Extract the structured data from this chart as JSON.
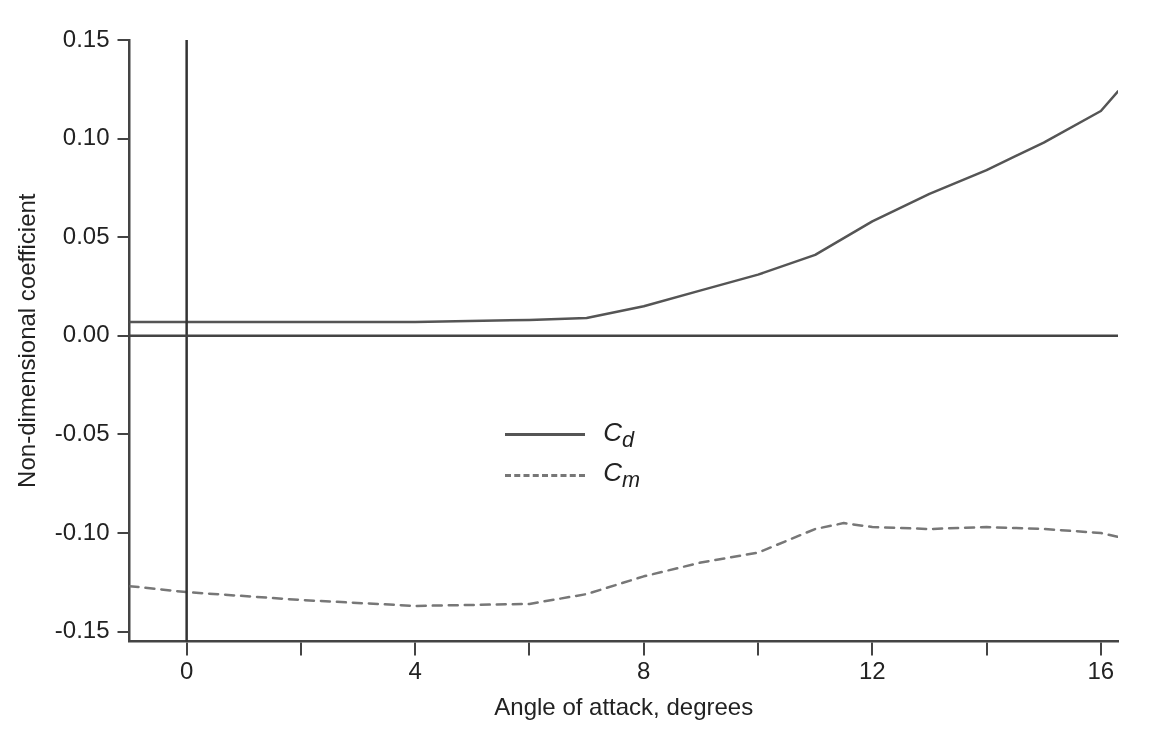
{
  "chart_data": {
    "type": "line",
    "xlabel": "Angle of attack, degrees",
    "ylabel": "Non-dimensional coefficient",
    "xlim": [
      -1,
      16.3
    ],
    "ylim": [
      -0.155,
      0.15
    ],
    "xticks": [
      0,
      {
        "value": 2,
        "label": null
      },
      4,
      {
        "value": 6,
        "label": null
      },
      8,
      {
        "value": 10,
        "label": null
      },
      12,
      {
        "value": 14,
        "label": null
      },
      16
    ],
    "yticks": [
      0.15,
      {
        "value": 0.1,
        "label": "0.10"
      },
      0.05,
      {
        "value": 0,
        "label": "0.00"
      },
      -0.05,
      {
        "value": -0.1,
        "label": "-0.10"
      },
      -0.15
    ],
    "series": [
      {
        "name": "C$_{d}$",
        "color": "#555555",
        "line_style": "solid",
        "x": [
          -1,
          0,
          2,
          4,
          6,
          7,
          8,
          9,
          10,
          11,
          12,
          13,
          14,
          15,
          16,
          16.3
        ],
        "values": [
          0.007,
          0.007,
          0.007,
          0.007,
          0.008,
          0.009,
          0.015,
          0.023,
          0.031,
          0.041,
          0.058,
          0.072,
          0.084,
          0.098,
          0.114,
          0.124
        ]
      },
      {
        "name": "C$_{m}$",
        "color": "#777777",
        "line_style": "dashed",
        "x": [
          -1,
          0,
          2,
          4,
          6,
          7,
          8,
          9,
          10,
          11,
          11.5,
          12,
          13,
          14,
          15,
          16,
          16.3
        ],
        "values": [
          -0.127,
          -0.13,
          -0.134,
          -0.137,
          -0.136,
          -0.131,
          -0.122,
          -0.115,
          -0.11,
          -0.098,
          -0.095,
          -0.097,
          -0.098,
          -0.097,
          -0.098,
          -0.1,
          -0.102
        ]
      }
    ],
    "ref_lines": [
      {
        "axis": "x",
        "value": 0,
        "color": "#333333"
      },
      {
        "axis": "y",
        "value": 0,
        "color": "#444444"
      }
    ],
    "legend": "center",
    "grid": false,
    "marker": "none"
  }
}
